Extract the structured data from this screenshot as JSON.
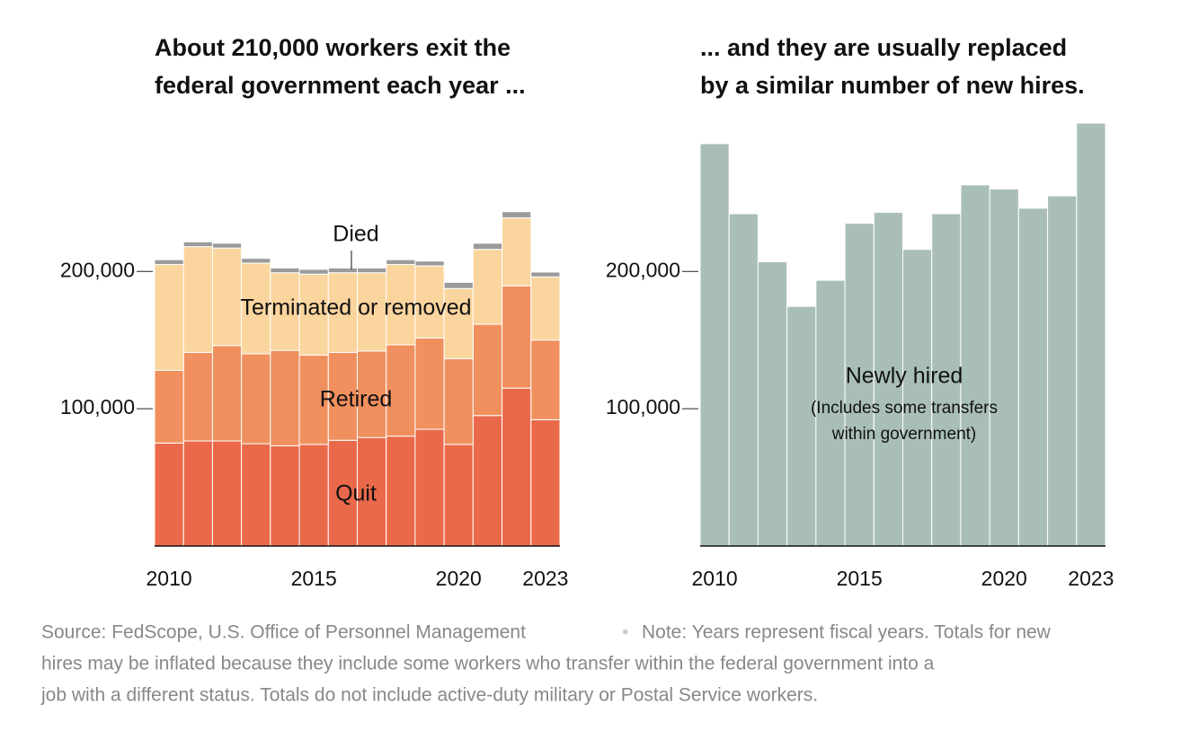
{
  "chart_data": [
    {
      "type": "bar",
      "stacked": true,
      "title": [
        "About 210,000 workers exit the",
        "federal government each year ..."
      ],
      "categories": [
        "2010",
        null,
        null,
        null,
        null,
        "2015",
        null,
        null,
        null,
        null,
        "2020",
        null,
        null,
        "2023"
      ],
      "series": [
        {
          "name": "Quit",
          "color": "#e9694a",
          "values": [
            75000,
            76500,
            76500,
            74500,
            73000,
            74000,
            77000,
            79000,
            80000,
            85000,
            74000,
            95000,
            115000,
            92000
          ]
        },
        {
          "name": "Retired",
          "color": "#f0905e",
          "values": [
            53000,
            64500,
            69500,
            65500,
            69500,
            65000,
            64000,
            63000,
            66500,
            66500,
            62500,
            66500,
            74500,
            58000
          ]
        },
        {
          "name": "Terminated or removed",
          "color": "#fbd59e",
          "values": [
            77000,
            77000,
            71000,
            66000,
            56500,
            59000,
            58000,
            57000,
            58500,
            52500,
            51000,
            54500,
            49500,
            46000
          ]
        },
        {
          "name": "Died",
          "color": "#9b9b9b",
          "values": [
            3500,
            3500,
            3500,
            3500,
            3500,
            3500,
            3500,
            3500,
            3500,
            3500,
            4500,
            4500,
            4500,
            3500
          ]
        }
      ],
      "ylim": [
        0,
        310000
      ],
      "yticks": [
        {
          "value": 100000,
          "label": "100,000"
        },
        {
          "value": 200000,
          "label": "200,000"
        }
      ]
    },
    {
      "type": "bar",
      "title": [
        "... and they are usually replaced",
        "by a similar number of new hires."
      ],
      "categories": [
        "2010",
        null,
        null,
        null,
        null,
        "2015",
        null,
        null,
        null,
        null,
        "2020",
        null,
        null,
        "2023"
      ],
      "series": [
        {
          "name": "Newly hired",
          "color": "#a9bfb6",
          "values": [
            293000,
            242000,
            207000,
            174500,
            193500,
            235000,
            243000,
            216000,
            242000,
            263000,
            260000,
            246000,
            255000,
            308000
          ]
        }
      ],
      "annotations": [
        "(Includes some transfers",
        "within government)"
      ],
      "ylim": [
        0,
        310000
      ],
      "yticks": [
        {
          "value": 100000,
          "label": "100,000"
        },
        {
          "value": 200000,
          "label": "200,000"
        }
      ]
    }
  ],
  "footer": {
    "source": "Source: FedScope, U.S. Office of Personnel Management",
    "note": [
      "Note: Years represent fiscal years. Totals for new",
      "hires may be inflated because they include some workers who transfer within the federal government into a",
      "job with a different status. Totals do not include active-duty military or Postal Service workers."
    ]
  }
}
